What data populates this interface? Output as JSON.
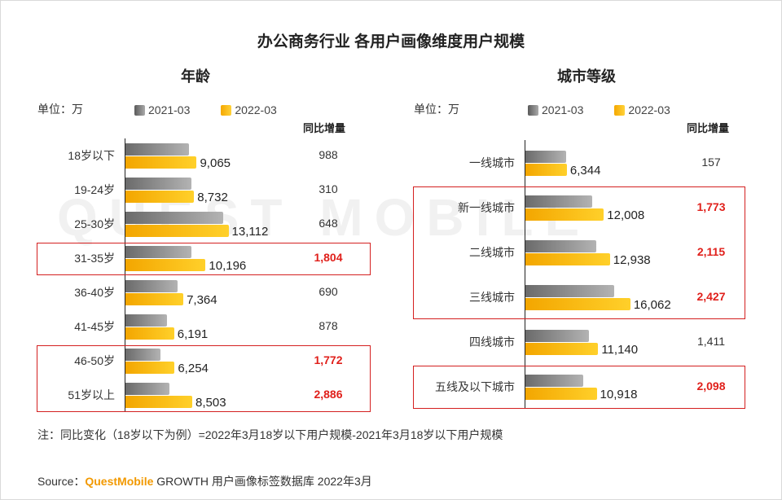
{
  "title": "办公商务行业 各用户画像维度用户规模",
  "watermark": "QUEST MOBILE",
  "legend": {
    "series1": "2021-03",
    "series2": "2022-03"
  },
  "colors": {
    "series1": "#8c8c8c",
    "series2": "#ffc000",
    "highlight": "#e0201b"
  },
  "left": {
    "subtitle": "年龄",
    "unit": "单位：万",
    "increment_header": "同比增量"
  },
  "right": {
    "subtitle": "城市等级",
    "unit": "单位：万",
    "increment_header": "同比增量"
  },
  "note": "注：同比变化（18岁以下为例）=2022年3月18岁以下用户规模-2021年3月18岁以下用户规模",
  "source": {
    "prefix": "Source：",
    "brand": "QuestMobile",
    "rest": " GROWTH 用户画像标签数据库 2022年3月"
  },
  "chart_data": [
    {
      "type": "bar",
      "title": "年龄",
      "unit": "万",
      "categories": [
        "18岁以下",
        "19-24岁",
        "25-30岁",
        "31-35岁",
        "36-40岁",
        "41-45岁",
        "46-50岁",
        "51岁以上"
      ],
      "series": [
        {
          "name": "2021-03",
          "values": [
            8077,
            8422,
            12464,
            8392,
            6674,
            5313,
            4482,
            5617
          ]
        },
        {
          "name": "2022-03",
          "values": [
            9065,
            8732,
            13112,
            10196,
            7364,
            6191,
            6254,
            8503
          ]
        }
      ],
      "value_labels": [
        "9,065",
        "8,732",
        "13,112",
        "10,196",
        "7,364",
        "6,191",
        "6,254",
        "8,503"
      ],
      "increment_labels": [
        "988",
        "310",
        "648",
        "1,804",
        "690",
        "878",
        "1,772",
        "2,886"
      ],
      "highlighted": [
        "31-35岁",
        "46-50岁",
        "51岁以上"
      ]
    },
    {
      "type": "bar",
      "title": "城市等级",
      "unit": "万",
      "categories": [
        "一线城市",
        "新一线城市",
        "二线城市",
        "三线城市",
        "四线城市",
        "五线及以下城市"
      ],
      "series": [
        {
          "name": "2021-03",
          "values": [
            6187,
            10235,
            10823,
            13635,
            9729,
            8820
          ]
        },
        {
          "name": "2022-03",
          "values": [
            6344,
            12008,
            12938,
            16062,
            11140,
            10918
          ]
        }
      ],
      "value_labels": [
        "6,344",
        "12,008",
        "12,938",
        "16,062",
        "11,140",
        "10,918"
      ],
      "increment_labels": [
        "157",
        "1,773",
        "2,115",
        "2,427",
        "1,411",
        "2,098"
      ],
      "highlighted": [
        "新一线城市",
        "二线城市",
        "三线城市",
        "五线及以下城市"
      ]
    }
  ]
}
